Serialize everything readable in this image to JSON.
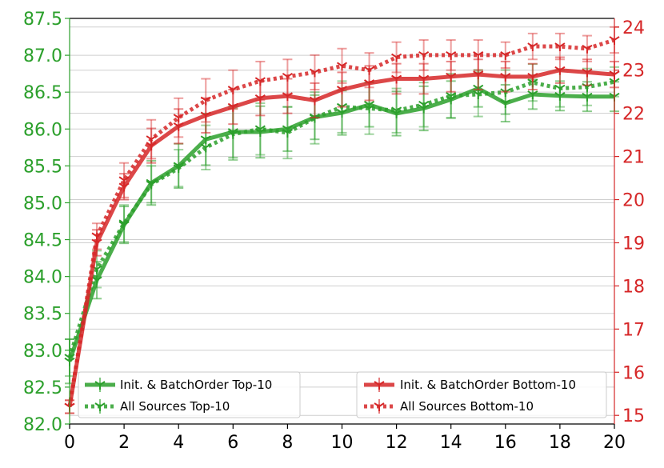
{
  "chart_data": {
    "type": "line",
    "x": [
      0,
      1,
      2,
      3,
      4,
      5,
      6,
      7,
      8,
      9,
      10,
      11,
      12,
      13,
      14,
      15,
      16,
      17,
      18,
      19,
      20
    ],
    "xlim": [
      0,
      20
    ],
    "xticks": [
      0,
      2,
      4,
      6,
      8,
      10,
      12,
      14,
      16,
      18,
      20
    ],
    "left_axis": {
      "ylim": [
        82.0,
        87.5
      ],
      "ticks": [
        "82.0",
        "82.5",
        "83.0",
        "83.5",
        "84.0",
        "84.5",
        "85.0",
        "85.5",
        "86.0",
        "86.5",
        "87.0",
        "87.5"
      ],
      "color": "#2ca02c"
    },
    "right_axis": {
      "ylim": [
        14.8,
        24.2
      ],
      "ticks": [
        "15",
        "16",
        "17",
        "18",
        "19",
        "20",
        "21",
        "22",
        "23",
        "24"
      ],
      "color": "#d62728"
    },
    "grid": "horizontal",
    "series": [
      {
        "name": "Init. & BatchOrder Top-10",
        "axis": "left",
        "color": "#2ca02c",
        "style": "solid",
        "values": [
          82.85,
          83.95,
          84.7,
          85.27,
          85.5,
          85.86,
          85.96,
          85.96,
          86.0,
          86.16,
          86.22,
          86.33,
          86.21,
          86.28,
          86.4,
          86.55,
          86.35,
          86.47,
          86.45,
          86.44,
          86.44
        ],
        "errors": [
          0.3,
          0.25,
          0.25,
          0.3,
          0.3,
          0.35,
          0.35,
          0.35,
          0.3,
          0.3,
          0.3,
          0.3,
          0.3,
          0.3,
          0.25,
          0.25,
          0.25,
          0.2,
          0.2,
          0.2,
          0.2
        ]
      },
      {
        "name": "All Sources Top-10",
        "axis": "left",
        "color": "#2ca02c",
        "style": "dotted",
        "values": [
          82.9,
          84.1,
          84.72,
          85.25,
          85.47,
          85.75,
          85.93,
          86.0,
          85.95,
          86.15,
          86.3,
          86.28,
          86.25,
          86.33,
          86.45,
          86.47,
          86.5,
          86.63,
          86.55,
          86.57,
          86.64
        ],
        "errors": [
          0.25,
          0.25,
          0.25,
          0.25,
          0.25,
          0.3,
          0.35,
          0.35,
          0.35,
          0.35,
          0.35,
          0.35,
          0.3,
          0.3,
          0.3,
          0.3,
          0.3,
          0.25,
          0.25,
          0.25,
          0.2
        ]
      },
      {
        "name": "Init. & BatchOrder Bottom-10",
        "axis": "right",
        "color": "#d62728",
        "style": "solid",
        "values": [
          15.2,
          19.0,
          20.3,
          21.25,
          21.7,
          21.95,
          22.15,
          22.35,
          22.4,
          22.3,
          22.55,
          22.7,
          22.8,
          22.8,
          22.85,
          22.9,
          22.85,
          22.85,
          23.0,
          22.95,
          22.9
        ],
        "errors": [
          0.15,
          0.3,
          0.3,
          0.4,
          0.4,
          0.4,
          0.4,
          0.4,
          0.4,
          0.4,
          0.4,
          0.4,
          0.35,
          0.35,
          0.35,
          0.35,
          0.35,
          0.3,
          0.3,
          0.3,
          0.3
        ]
      },
      {
        "name": "All Sources Bottom-10",
        "axis": "right",
        "color": "#d62728",
        "style": "dotted",
        "values": [
          15.2,
          19.15,
          20.45,
          21.4,
          21.9,
          22.3,
          22.55,
          22.75,
          22.85,
          22.95,
          23.1,
          23.0,
          23.3,
          23.35,
          23.35,
          23.35,
          23.35,
          23.55,
          23.55,
          23.5,
          23.7
        ],
        "errors": [
          0.15,
          0.3,
          0.4,
          0.45,
          0.45,
          0.5,
          0.45,
          0.45,
          0.4,
          0.4,
          0.4,
          0.4,
          0.35,
          0.35,
          0.35,
          0.35,
          0.3,
          0.3,
          0.3,
          0.3,
          0.3
        ]
      }
    ],
    "legends": [
      {
        "placement": "bottom-left",
        "entries": [
          "Init. & BatchOrder Top-10",
          "All Sources Top-10"
        ]
      },
      {
        "placement": "bottom-right",
        "entries": [
          "Init. & BatchOrder Bottom-10",
          "All Sources Bottom-10"
        ]
      }
    ]
  }
}
